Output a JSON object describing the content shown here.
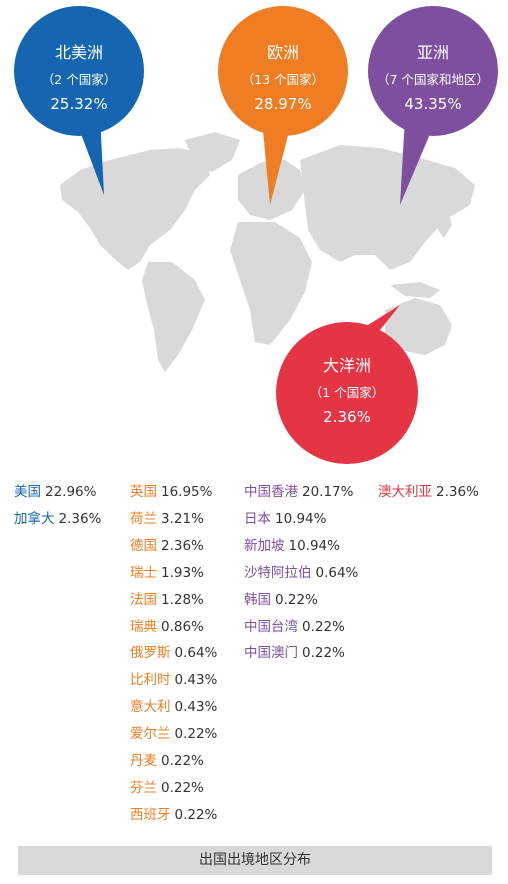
{
  "chart_data": {
    "type": "pie",
    "title": "",
    "caption": "出国出境地区分布",
    "regions": [
      {
        "key": "na",
        "name": "北美洲",
        "count_label": "（2 个国家）",
        "percent": "25.32%",
        "value": 25.32,
        "color": "#1565b0",
        "items": [
          {
            "name": "美国",
            "percent": "22.96%",
            "value": 22.96
          },
          {
            "name": "加拿大",
            "percent": "2.36%",
            "value": 2.36
          }
        ]
      },
      {
        "key": "eu",
        "name": "欧洲",
        "count_label": "（13 个国家）",
        "percent": "28.97%",
        "value": 28.97,
        "color": "#ee7d23",
        "items": [
          {
            "name": "英国",
            "percent": "16.95%",
            "value": 16.95
          },
          {
            "name": "荷兰",
            "percent": "3.21%",
            "value": 3.21
          },
          {
            "name": "德国",
            "percent": "2.36%",
            "value": 2.36
          },
          {
            "name": "瑞士",
            "percent": "1.93%",
            "value": 1.93
          },
          {
            "name": "法国",
            "percent": "1.28%",
            "value": 1.28
          },
          {
            "name": "瑞典",
            "percent": "0.86%",
            "value": 0.86
          },
          {
            "name": "俄罗斯",
            "percent": "0.64%",
            "value": 0.64
          },
          {
            "name": "比利时",
            "percent": "0.43%",
            "value": 0.43
          },
          {
            "name": "意大利",
            "percent": "0.43%",
            "value": 0.43
          },
          {
            "name": "爱尔兰",
            "percent": "0.22%",
            "value": 0.22
          },
          {
            "name": "丹麦",
            "percent": "0.22%",
            "value": 0.22
          },
          {
            "name": "芬兰",
            "percent": "0.22%",
            "value": 0.22
          },
          {
            "name": "西班牙",
            "percent": "0.22%",
            "value": 0.22
          }
        ]
      },
      {
        "key": "as",
        "name": "亚洲",
        "count_label": "（7 个国家和地区）",
        "percent": "43.35%",
        "value": 43.35,
        "color": "#7d4f9e",
        "items": [
          {
            "name": "中国香港",
            "percent": "20.17%",
            "value": 20.17
          },
          {
            "name": "日本",
            "percent": "10.94%",
            "value": 10.94
          },
          {
            "name": "新加坡",
            "percent": "10.94%",
            "value": 10.94
          },
          {
            "name": "沙特阿拉伯",
            "percent": "0.64%",
            "value": 0.64
          },
          {
            "name": "韩国",
            "percent": "0.22%",
            "value": 0.22
          },
          {
            "name": "中国台湾",
            "percent": "0.22%",
            "value": 0.22
          },
          {
            "name": "中国澳门",
            "percent": "0.22%",
            "value": 0.22
          }
        ]
      },
      {
        "key": "oc",
        "name": "大洋洲",
        "count_label": "（1 个国家）",
        "percent": "2.36%",
        "value": 2.36,
        "color": "#e53545",
        "items": [
          {
            "name": "澳大利亚",
            "percent": "2.36%",
            "value": 2.36
          }
        ]
      }
    ]
  }
}
